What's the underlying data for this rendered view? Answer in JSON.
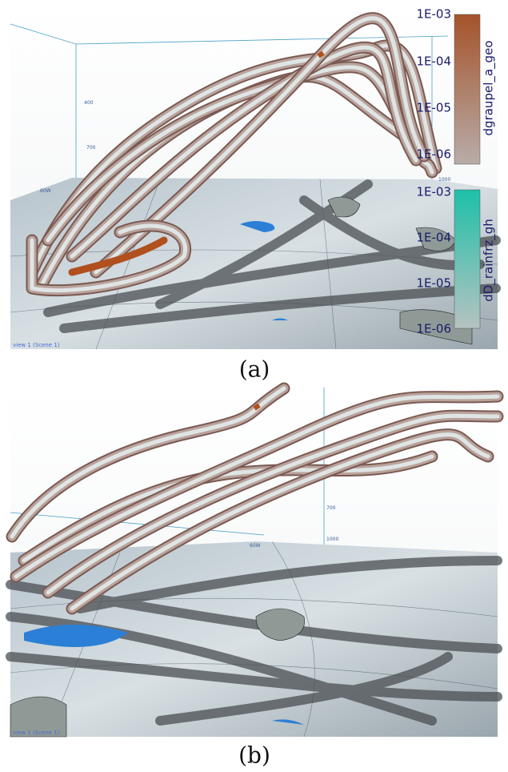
{
  "panels": [
    {
      "caption": "(a)",
      "view_label": "view 1 (Scene 1)",
      "axis_labels": [
        "400",
        "700",
        "1000",
        "60W"
      ],
      "colorbars": [
        {
          "title": "dgraupel_a_geo",
          "ticks": [
            "1E-03",
            "1E-04",
            "1E-05",
            "1E-06"
          ]
        },
        {
          "title": "dD_rainfrz_gh",
          "ticks": [
            "1E-03",
            "1E-04",
            "1E-05",
            "1E-06"
          ]
        }
      ]
    },
    {
      "caption": "(b)",
      "view_label": "view 1 (Scene 1)",
      "axis_labels": [
        "700",
        "1000",
        "60W"
      ]
    }
  ]
}
